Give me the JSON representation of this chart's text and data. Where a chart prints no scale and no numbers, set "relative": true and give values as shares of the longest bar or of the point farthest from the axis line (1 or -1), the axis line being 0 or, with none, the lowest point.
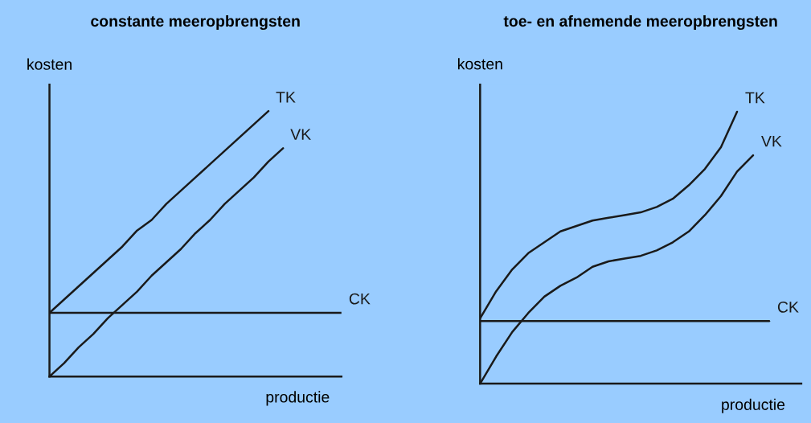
{
  "chart_data": [
    {
      "type": "line",
      "title": "constante meeropbrengsten",
      "xlabel": "productie",
      "ylabel": "kosten",
      "relative": true,
      "legend": false,
      "marker": "none",
      "line_style": "solid",
      "categories": [
        null,
        null,
        null,
        null,
        null,
        null,
        null,
        null,
        null,
        null,
        null,
        null,
        null,
        null,
        null,
        null,
        null,
        null,
        null,
        null,
        null
      ],
      "series": [
        {
          "name": "TK",
          "color": "#1a1a1a",
          "values": [
            0.24,
            0.29,
            0.34,
            0.39,
            0.44,
            0.49,
            0.55,
            0.59,
            0.65,
            0.7,
            0.75,
            0.8,
            0.85,
            0.9,
            0.95,
            1.0,
            null,
            null,
            null,
            null,
            null
          ]
        },
        {
          "name": "VK",
          "color": "#1a1a1a",
          "values": [
            0,
            0.05,
            0.11,
            0.16,
            0.22,
            0.27,
            0.32,
            0.38,
            0.43,
            0.48,
            0.54,
            0.59,
            0.65,
            0.7,
            0.75,
            0.81,
            0.86,
            null,
            null,
            null,
            null
          ]
        },
        {
          "name": "CK",
          "color": "#1a1a1a",
          "values": [
            0.24,
            0.24,
            0.24,
            0.24,
            0.24,
            0.24,
            0.24,
            0.24,
            0.24,
            0.24,
            0.24,
            0.24,
            0.24,
            0.24,
            0.24,
            0.24,
            0.24,
            0.24,
            0.24,
            0.24,
            0.24
          ]
        }
      ]
    },
    {
      "type": "line",
      "title": "toe- en afnemende meeropbrengsten",
      "xlabel": "productie",
      "ylabel": "kosten",
      "relative": true,
      "legend": false,
      "marker": "none",
      "line_style": "solid",
      "categories": [
        null,
        null,
        null,
        null,
        null,
        null,
        null,
        null,
        null,
        null,
        null,
        null,
        null,
        null,
        null,
        null,
        null,
        null,
        null,
        null,
        null
      ],
      "series": [
        {
          "name": "TK",
          "color": "#1a1a1a",
          "values": [
            0.24,
            0.34,
            0.42,
            0.48,
            0.52,
            0.56,
            0.58,
            0.6,
            0.61,
            0.62,
            0.63,
            0.65,
            0.68,
            0.73,
            0.79,
            0.87,
            1.0,
            null,
            null,
            null,
            null
          ]
        },
        {
          "name": "VK",
          "color": "#1a1a1a",
          "values": [
            0,
            0.1,
            0.19,
            0.26,
            0.32,
            0.36,
            0.39,
            0.43,
            0.45,
            0.46,
            0.47,
            0.49,
            0.52,
            0.56,
            0.62,
            0.69,
            0.78,
            0.84,
            null,
            null,
            null
          ]
        },
        {
          "name": "CK",
          "color": "#1a1a1a",
          "values": [
            0.23,
            0.23,
            0.23,
            0.23,
            0.23,
            0.23,
            0.23,
            0.23,
            0.23,
            0.23,
            0.23,
            0.23,
            0.23,
            0.23,
            0.23,
            0.23,
            0.23,
            0.23,
            0.23,
            null,
            null
          ]
        }
      ]
    }
  ]
}
